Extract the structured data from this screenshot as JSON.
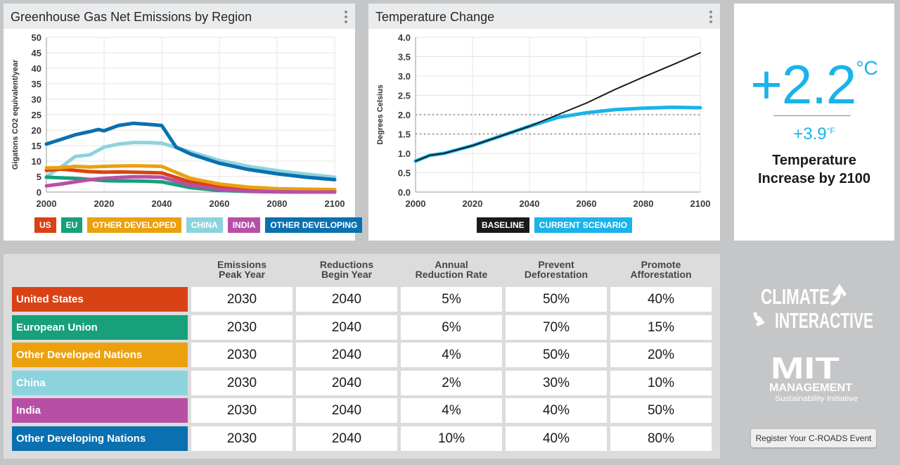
{
  "emissions_panel": {
    "title": "Greenhouse Gas Net Emissions by Region",
    "legend": [
      {
        "label": "US",
        "color": "#d94215"
      },
      {
        "label": "EU",
        "color": "#17a079"
      },
      {
        "label": "OTHER DEVELOPED",
        "color": "#eba10e"
      },
      {
        "label": "CHINA",
        "color": "#8dd3de"
      },
      {
        "label": "INDIA",
        "color": "#b84fa6"
      },
      {
        "label": "OTHER DEVELOPING",
        "color": "#0a70b0"
      }
    ]
  },
  "temperature_panel": {
    "title": "Temperature Change",
    "legend": [
      {
        "label": "BASELINE",
        "color": "#1a1a1a"
      },
      {
        "label": "CURRENT SCENARIO",
        "color": "#1ab3ea"
      }
    ]
  },
  "summary": {
    "celsius_value": "+2.2",
    "celsius_unit": "°C",
    "fahrenheit_value": "+3.9",
    "fahrenheit_unit": "°F",
    "caption": "Temperature Increase by 2100"
  },
  "table": {
    "headers": [
      [
        "Emissions",
        "Peak Year"
      ],
      [
        "Reductions",
        "Begin Year"
      ],
      [
        "Annual",
        "Reduction Rate"
      ],
      [
        "Prevent",
        "Deforestation"
      ],
      [
        "Promote",
        "Afforestation"
      ]
    ],
    "rows": [
      {
        "region": "United States",
        "color": "#d94215",
        "values": [
          "2030",
          "2040",
          "5%",
          "50%",
          "40%"
        ]
      },
      {
        "region": "European Union",
        "color": "#17a079",
        "values": [
          "2030",
          "2040",
          "6%",
          "70%",
          "15%"
        ]
      },
      {
        "region": "Other Developed Nations",
        "color": "#eba10e",
        "values": [
          "2030",
          "2040",
          "4%",
          "50%",
          "20%"
        ]
      },
      {
        "region": "China",
        "color": "#8dd3de",
        "values": [
          "2030",
          "2040",
          "2%",
          "30%",
          "10%"
        ]
      },
      {
        "region": "India",
        "color": "#b84fa6",
        "values": [
          "2030",
          "2040",
          "4%",
          "40%",
          "50%"
        ]
      },
      {
        "region": "Other Developing Nations",
        "color": "#0a70b0",
        "values": [
          "2030",
          "2040",
          "10%",
          "40%",
          "80%"
        ]
      }
    ]
  },
  "logos": {
    "climate_line1": "CLIMATE",
    "climate_line2": "INTERACTIVE",
    "mit_mark": "MIT",
    "mit_line1": "MANAGEMENT",
    "mit_line2": "Sustainability Initiative"
  },
  "register_button": "Register Your C-ROADS Event",
  "chart_data": [
    {
      "type": "line",
      "title": "Greenhouse Gas Net Emissions by Region",
      "xlabel": "",
      "ylabel": "Gigatons CO2 equivalent/year",
      "xlim": [
        2000,
        2100
      ],
      "ylim": [
        0,
        50
      ],
      "xticks": [
        2000,
        2020,
        2040,
        2060,
        2080,
        2100
      ],
      "yticks": [
        0,
        5,
        10,
        15,
        20,
        25,
        30,
        35,
        40,
        45,
        50
      ],
      "grid": true,
      "legend_position": "bottom",
      "series": [
        {
          "name": "US",
          "color": "#d94215",
          "points": [
            [
              2000,
              7
            ],
            [
              2005,
              7.4
            ],
            [
              2010,
              7
            ],
            [
              2015,
              6.6
            ],
            [
              2020,
              6.4
            ],
            [
              2025,
              6.5
            ],
            [
              2030,
              6.4
            ],
            [
              2035,
              6.3
            ],
            [
              2040,
              6.2
            ],
            [
              2050,
              3.2
            ],
            [
              2060,
              1.8
            ],
            [
              2070,
              1.2
            ],
            [
              2080,
              0.9
            ],
            [
              2090,
              0.7
            ],
            [
              2100,
              0.6
            ]
          ]
        },
        {
          "name": "EU",
          "color": "#17a079",
          "points": [
            [
              2000,
              4.8
            ],
            [
              2005,
              4.6
            ],
            [
              2010,
              4.4
            ],
            [
              2015,
              4.1
            ],
            [
              2020,
              3.7
            ],
            [
              2025,
              3.6
            ],
            [
              2030,
              3.6
            ],
            [
              2035,
              3.5
            ],
            [
              2040,
              3.3
            ],
            [
              2050,
              1.4
            ],
            [
              2060,
              0.5
            ],
            [
              2070,
              0.2
            ],
            [
              2080,
              0.05
            ],
            [
              2090,
              0
            ],
            [
              2100,
              0
            ]
          ]
        },
        {
          "name": "OTHER DEVELOPED",
          "color": "#eba10e",
          "points": [
            [
              2000,
              7.8
            ],
            [
              2005,
              7.9
            ],
            [
              2010,
              8.3
            ],
            [
              2015,
              8.1
            ],
            [
              2020,
              8.3
            ],
            [
              2025,
              8.4
            ],
            [
              2030,
              8.5
            ],
            [
              2035,
              8.4
            ],
            [
              2040,
              8.3
            ],
            [
              2050,
              4.4
            ],
            [
              2060,
              2.6
            ],
            [
              2070,
              1.6
            ],
            [
              2080,
              1.1
            ],
            [
              2090,
              0.9
            ],
            [
              2100,
              0.8
            ]
          ]
        },
        {
          "name": "CHINA",
          "color": "#8dd3de",
          "points": [
            [
              2000,
              5
            ],
            [
              2005,
              8
            ],
            [
              2010,
              11.5
            ],
            [
              2015,
              12
            ],
            [
              2020,
              14.5
            ],
            [
              2025,
              15.5
            ],
            [
              2030,
              16
            ],
            [
              2035,
              16
            ],
            [
              2040,
              15.8
            ],
            [
              2050,
              13
            ],
            [
              2060,
              10.2
            ],
            [
              2070,
              8.3
            ],
            [
              2080,
              6.9
            ],
            [
              2090,
              5.8
            ],
            [
              2100,
              4.8
            ]
          ]
        },
        {
          "name": "INDIA",
          "color": "#b84fa6",
          "points": [
            [
              2000,
              2
            ],
            [
              2005,
              2.6
            ],
            [
              2010,
              3.3
            ],
            [
              2015,
              4
            ],
            [
              2020,
              4.4
            ],
            [
              2025,
              4.7
            ],
            [
              2030,
              4.9
            ],
            [
              2035,
              4.9
            ],
            [
              2040,
              4.8
            ],
            [
              2050,
              2.2
            ],
            [
              2060,
              0.9
            ],
            [
              2070,
              0.3
            ],
            [
              2080,
              0.1
            ],
            [
              2090,
              0
            ],
            [
              2100,
              0
            ]
          ]
        },
        {
          "name": "OTHER DEVELOPING",
          "color": "#0a70b0",
          "points": [
            [
              2000,
              15.5
            ],
            [
              2005,
              17
            ],
            [
              2010,
              18.5
            ],
            [
              2015,
              19.5
            ],
            [
              2018,
              20.2
            ],
            [
              2020,
              19.8
            ],
            [
              2025,
              21.5
            ],
            [
              2030,
              22.2
            ],
            [
              2035,
              21.9
            ],
            [
              2040,
              21.5
            ],
            [
              2045,
              14.5
            ],
            [
              2050,
              12.3
            ],
            [
              2060,
              9.3
            ],
            [
              2070,
              7.3
            ],
            [
              2080,
              5.9
            ],
            [
              2090,
              4.8
            ],
            [
              2100,
              4
            ]
          ]
        }
      ]
    },
    {
      "type": "line",
      "title": "Temperature Change",
      "xlabel": "",
      "ylabel": "Degrees Celsius",
      "xlim": [
        2000,
        2100
      ],
      "ylim": [
        0,
        4
      ],
      "xticks": [
        2000,
        2020,
        2040,
        2060,
        2080,
        2100
      ],
      "yticks": [
        0,
        0.5,
        1,
        1.5,
        2,
        2.5,
        3,
        3.5,
        4
      ],
      "reference_lines": [
        1.5,
        2.0
      ],
      "grid": true,
      "legend_position": "bottom",
      "series": [
        {
          "name": "BASELINE",
          "color": "#1a1a1a",
          "points": [
            [
              2000,
              0.8
            ],
            [
              2005,
              0.95
            ],
            [
              2010,
              1.0
            ],
            [
              2020,
              1.2
            ],
            [
              2030,
              1.45
            ],
            [
              2040,
              1.7
            ],
            [
              2050,
              2.0
            ],
            [
              2060,
              2.3
            ],
            [
              2070,
              2.65
            ],
            [
              2080,
              2.97
            ],
            [
              2090,
              3.28
            ],
            [
              2100,
              3.6
            ]
          ]
        },
        {
          "name": "CURRENT SCENARIO",
          "color": "#1ab3ea",
          "points": [
            [
              2000,
              0.8
            ],
            [
              2005,
              0.95
            ],
            [
              2010,
              1.0
            ],
            [
              2020,
              1.2
            ],
            [
              2030,
              1.45
            ],
            [
              2040,
              1.7
            ],
            [
              2050,
              1.93
            ],
            [
              2060,
              2.05
            ],
            [
              2070,
              2.13
            ],
            [
              2080,
              2.17
            ],
            [
              2090,
              2.19
            ],
            [
              2100,
              2.18
            ]
          ]
        }
      ]
    }
  ]
}
